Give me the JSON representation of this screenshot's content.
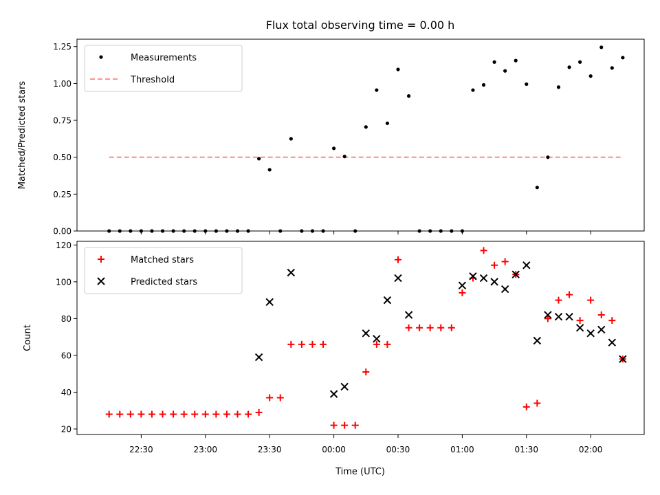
{
  "title": "Flux total observing time = 0.00 h",
  "xlabel": "Time (UTC)",
  "colors": {
    "measurement": "#000000",
    "threshold": "#ff8080",
    "matched": "#ff0000",
    "predicted": "#000000"
  },
  "chart_data": [
    {
      "type": "scatter",
      "title": "Flux total observing time = 0.00 h",
      "ylabel": "Matched/Predicted stars",
      "ylim": [
        0,
        1.3
      ],
      "yticks": [
        0.0,
        0.25,
        0.5,
        0.75,
        1.0,
        1.25
      ],
      "ytick_labels": [
        "0.00",
        "0.25",
        "0.50",
        "0.75",
        "1.00",
        "1.25"
      ],
      "xlim": [
        "22:00",
        "02:25"
      ],
      "xticks": [
        "22:30",
        "23:00",
        "23:30",
        "00:00",
        "00:30",
        "01:00",
        "01:30",
        "02:00"
      ],
      "grid": false,
      "legend": {
        "position": "upper-left",
        "entries": [
          "Measurements",
          "Threshold"
        ]
      },
      "threshold": {
        "name": "Threshold",
        "y": 0.5,
        "x": [
          "22:15",
          "02:15"
        ]
      },
      "series": [
        {
          "name": "Measurements",
          "marker": "dot",
          "x": [
            "22:15",
            "22:20",
            "22:25",
            "22:30",
            "22:35",
            "22:40",
            "22:45",
            "22:50",
            "22:55",
            "23:00",
            "23:05",
            "23:10",
            "23:15",
            "23:20",
            "23:25",
            "23:30",
            "23:35",
            "23:40",
            "23:45",
            "23:50",
            "23:55",
            "00:00",
            "00:05",
            "00:10",
            "00:15",
            "00:20",
            "00:25",
            "00:30",
            "00:35",
            "00:40",
            "00:45",
            "00:50",
            "00:55",
            "01:00",
            "01:05",
            "01:10",
            "01:15",
            "01:20",
            "01:25",
            "01:30",
            "01:35",
            "01:40",
            "01:45",
            "01:50",
            "01:55",
            "02:00",
            "02:05",
            "02:10",
            "02:15"
          ],
          "values": [
            0,
            0,
            0,
            0,
            0,
            0,
            0,
            0,
            0,
            0,
            0,
            0,
            0,
            0,
            0.49,
            0.415,
            0,
            0.625,
            0,
            0,
            0,
            0.56,
            0.505,
            0,
            0.705,
            0.955,
            0.73,
            1.095,
            0.915,
            0,
            0,
            0,
            0,
            0,
            0.955,
            0.99,
            1.145,
            1.085,
            1.155,
            0.995,
            0.295,
            0.5,
            0.975,
            1.11,
            1.145,
            1.05,
            1.245,
            1.105,
            1.175
          ]
        }
      ]
    },
    {
      "type": "scatter",
      "ylabel": "Count",
      "ylim": [
        17,
        122
      ],
      "yticks": [
        20,
        40,
        60,
        80,
        100,
        120
      ],
      "ytick_labels": [
        "20",
        "40",
        "60",
        "80",
        "100",
        "120"
      ],
      "xlabel": "Time (UTC)",
      "xlim": [
        "22:00",
        "02:25"
      ],
      "xticks": [
        "22:30",
        "23:00",
        "23:30",
        "00:00",
        "00:30",
        "01:00",
        "01:30",
        "02:00"
      ],
      "grid": false,
      "legend": {
        "position": "upper-left",
        "entries": [
          "Matched stars",
          "Predicted stars"
        ]
      },
      "series": [
        {
          "name": "Matched stars",
          "marker": "plus",
          "x": [
            "22:15",
            "22:20",
            "22:25",
            "22:30",
            "22:35",
            "22:40",
            "22:45",
            "22:50",
            "22:55",
            "23:00",
            "23:05",
            "23:10",
            "23:15",
            "23:20",
            "23:25",
            "23:30",
            "23:35",
            "23:40",
            "23:45",
            "23:50",
            "23:55",
            "00:00",
            "00:05",
            "00:10",
            "00:15",
            "00:20",
            "00:25",
            "00:30",
            "00:35",
            "00:40",
            "00:45",
            "00:50",
            "00:55",
            "01:00",
            "01:05",
            "01:10",
            "01:15",
            "01:20",
            "01:25",
            "01:30",
            "01:35",
            "01:40",
            "01:45",
            "01:50",
            "01:55",
            "02:00",
            "02:05",
            "02:10",
            "02:15"
          ],
          "values": [
            28,
            28,
            28,
            28,
            28,
            28,
            28,
            28,
            28,
            28,
            28,
            28,
            28,
            28,
            29,
            37,
            37,
            66,
            66,
            66,
            66,
            22,
            22,
            22,
            51,
            66,
            66,
            112,
            75,
            75,
            75,
            75,
            75,
            94,
            102,
            117,
            109,
            111,
            104,
            32,
            34,
            80,
            90,
            93,
            79,
            90,
            82,
            79,
            58
          ]
        },
        {
          "name": "Predicted stars",
          "marker": "x",
          "x": [
            "23:25",
            "23:30",
            "23:40",
            "00:00",
            "00:05",
            "00:15",
            "00:20",
            "00:25",
            "00:30",
            "00:35",
            "01:00",
            "01:05",
            "01:10",
            "01:15",
            "01:20",
            "01:25",
            "01:30",
            "01:35",
            "01:40",
            "01:45",
            "01:50",
            "01:55",
            "02:00",
            "02:05",
            "02:10",
            "02:15"
          ],
          "values": [
            59,
            89,
            105,
            39,
            43,
            72,
            69,
            90,
            102,
            82,
            98,
            103,
            102,
            100,
            96,
            104,
            109,
            68,
            82,
            81,
            81,
            75,
            72,
            74,
            67,
            58
          ]
        }
      ]
    }
  ]
}
